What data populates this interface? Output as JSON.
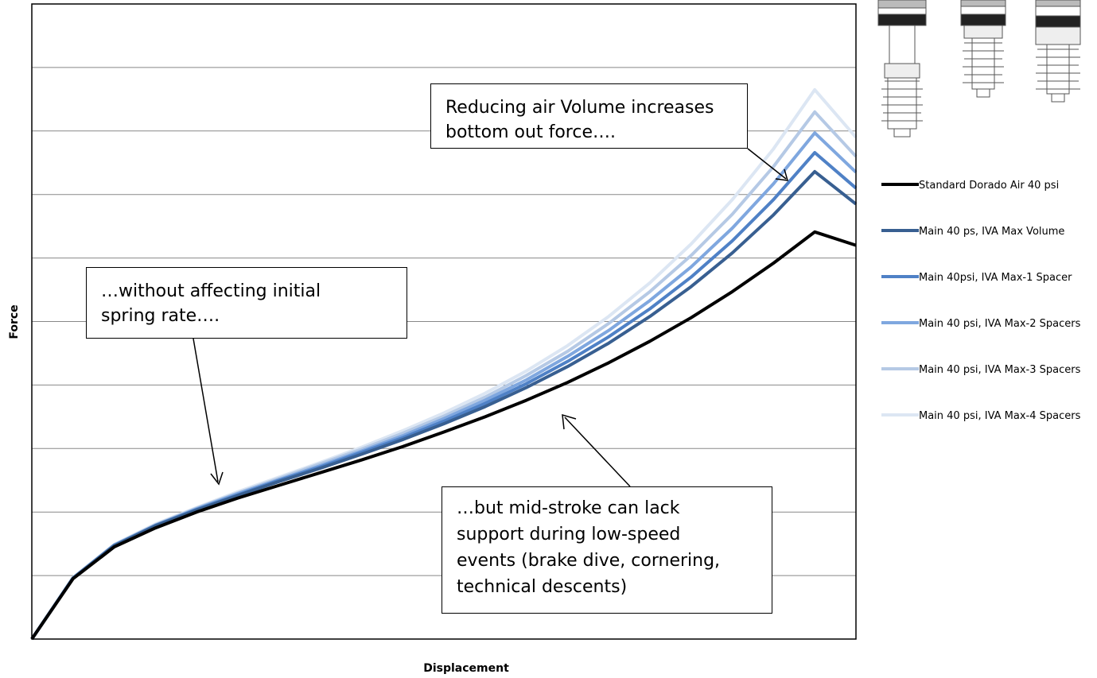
{
  "chart_data": {
    "type": "line",
    "xlabel": "Displacement",
    "ylabel": "Force",
    "grid": true,
    "x_ticks_shown": false,
    "y_ticks_shown": false,
    "legend_position": "right",
    "x_range": [
      0,
      1
    ],
    "y_range": [
      0,
      10
    ],
    "x": [
      0,
      0.05,
      0.1,
      0.15,
      0.2,
      0.25,
      0.3,
      0.35,
      0.4,
      0.45,
      0.5,
      0.55,
      0.6,
      0.65,
      0.7,
      0.75,
      0.8,
      0.85,
      0.9,
      0.95,
      1.0
    ],
    "series": [
      {
        "name": "Standard Dorado Air 40 psi",
        "color": "#000000",
        "values": [
          0.0,
          0.95,
          1.45,
          1.75,
          2.0,
          2.22,
          2.42,
          2.62,
          2.82,
          3.03,
          3.26,
          3.5,
          3.76,
          4.04,
          4.35,
          4.69,
          5.06,
          5.47,
          5.92,
          6.41,
          6.2
        ]
      },
      {
        "name": "Main 40 ps, IVA Max Volume",
        "color": "#385f91",
        "values": [
          0.0,
          0.96,
          1.47,
          1.78,
          2.03,
          2.26,
          2.48,
          2.69,
          2.91,
          3.14,
          3.39,
          3.66,
          3.96,
          4.29,
          4.66,
          5.08,
          5.55,
          6.08,
          6.68,
          7.36,
          6.85
        ]
      },
      {
        "name": "Main 40psi, IVA Max-1 Spacer",
        "color": "#4f81c6",
        "values": [
          0.0,
          0.96,
          1.47,
          1.79,
          2.04,
          2.27,
          2.5,
          2.71,
          2.94,
          3.17,
          3.43,
          3.71,
          4.02,
          4.37,
          4.76,
          5.2,
          5.7,
          6.27,
          6.92,
          7.66,
          7.1
        ]
      },
      {
        "name": "Main 40 psi, IVA Max-2 Spacers",
        "color": "#7fa7df",
        "values": [
          0.0,
          0.96,
          1.48,
          1.79,
          2.05,
          2.29,
          2.51,
          2.73,
          2.96,
          3.2,
          3.47,
          3.76,
          4.08,
          4.45,
          4.86,
          5.33,
          5.86,
          6.47,
          7.17,
          7.97,
          7.35
        ]
      },
      {
        "name": "Main 40 psi, IVA Max-3 Spacers",
        "color": "#b5c9e5",
        "values": [
          0.0,
          0.96,
          1.48,
          1.8,
          2.06,
          2.3,
          2.53,
          2.76,
          2.99,
          3.24,
          3.51,
          3.81,
          4.15,
          4.53,
          4.97,
          5.47,
          6.04,
          6.69,
          7.44,
          8.3,
          7.6
        ]
      },
      {
        "name": "Main 40 psi, IVA Max-4 Spacers",
        "color": "#dce6f3",
        "values": [
          0.0,
          0.97,
          1.49,
          1.81,
          2.07,
          2.32,
          2.55,
          2.78,
          3.02,
          3.28,
          3.56,
          3.87,
          4.22,
          4.62,
          5.08,
          5.61,
          6.22,
          6.92,
          7.72,
          8.65,
          7.9
        ]
      }
    ],
    "annotations": [
      {
        "lines": [
          "Reducing air Volume increases",
          "bottom out force…."
        ]
      },
      {
        "lines": [
          "…without affecting initial",
          "spring rate…."
        ]
      },
      {
        "lines": [
          "…but mid-stroke can lack",
          "support during low-speed",
          "events (brake dive,  cornering,",
          "technical descents)"
        ]
      }
    ]
  }
}
